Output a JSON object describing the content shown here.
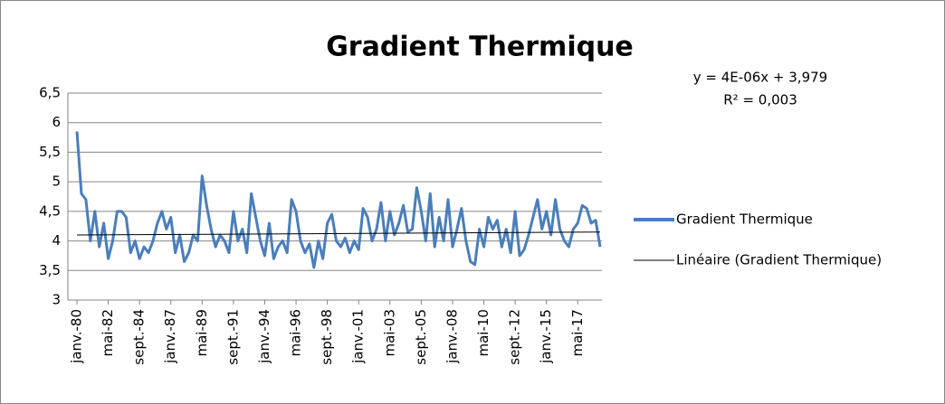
{
  "chart_data": {
    "type": "line",
    "title": "Gradient Thermique",
    "equation": "y = 4E-06x + 3,979",
    "r_squared": "R² = 0,003",
    "categories": [
      "janv.-80",
      null,
      null,
      null,
      null,
      null,
      null,
      "mai-82",
      null,
      null,
      null,
      null,
      null,
      null,
      "sept.-84",
      null,
      null,
      null,
      null,
      null,
      null,
      "janv.-87",
      null,
      null,
      null,
      null,
      null,
      null,
      "mai-89",
      null,
      null,
      null,
      null,
      null,
      null,
      "sept.-91",
      null,
      null,
      null,
      null,
      null,
      null,
      "janv.-94",
      null,
      null,
      null,
      null,
      null,
      null,
      "mai-96",
      null,
      null,
      null,
      null,
      null,
      null,
      "sept.-98",
      null,
      null,
      null,
      null,
      null,
      null,
      "janv.-01",
      null,
      null,
      null,
      null,
      null,
      null,
      "mai-03",
      null,
      null,
      null,
      null,
      null,
      null,
      "sept.-05",
      null,
      null,
      null,
      null,
      null,
      null,
      "janv.-08",
      null,
      null,
      null,
      null,
      null,
      null,
      "mai-10",
      null,
      null,
      null,
      null,
      null,
      null,
      "sept.-12",
      null,
      null,
      null,
      null,
      null,
      null,
      "janv.-15",
      null,
      null,
      null,
      null,
      null,
      null,
      "mai-17",
      null,
      null,
      null,
      null,
      null
    ],
    "series": [
      {
        "name": "Gradient Thermique",
        "color": "#4a7ebb",
        "values": [
          5.85,
          4.8,
          4.7,
          4.0,
          4.5,
          3.9,
          4.3,
          3.7,
          4.0,
          4.5,
          4.5,
          4.4,
          3.8,
          4.0,
          3.7,
          3.9,
          3.8,
          4.0,
          4.3,
          4.5,
          4.2,
          4.4,
          3.8,
          4.1,
          3.65,
          3.8,
          4.1,
          4.0,
          5.1,
          4.6,
          4.2,
          3.9,
          4.1,
          4.0,
          3.8,
          4.5,
          4.0,
          4.2,
          3.8,
          4.8,
          4.4,
          4.0,
          3.75,
          4.3,
          3.7,
          3.9,
          4.0,
          3.8,
          4.7,
          4.5,
          4.0,
          3.8,
          3.95,
          3.55,
          4.0,
          3.7,
          4.3,
          4.45,
          4.0,
          3.9,
          4.05,
          3.8,
          4.0,
          3.85,
          4.55,
          4.4,
          4.0,
          4.2,
          4.65,
          4.0,
          4.5,
          4.1,
          4.3,
          4.6,
          4.15,
          4.2,
          4.9,
          4.5,
          4.0,
          4.8,
          3.9,
          4.4,
          4.0,
          4.7,
          3.9,
          4.2,
          4.55,
          4.0,
          3.65,
          3.6,
          4.2,
          3.9,
          4.4,
          4.2,
          4.35,
          3.9,
          4.2,
          3.8,
          4.5,
          3.75,
          3.85,
          4.1,
          4.4,
          4.7,
          4.2,
          4.5,
          4.1,
          4.7,
          4.2,
          4.0,
          3.9,
          4.2,
          4.3,
          4.6,
          4.55,
          4.3,
          4.35,
          3.9
        ]
      }
    ],
    "trendline": {
      "name": "Linéaire (Gradient Thermique)",
      "color": "#000000",
      "values": [
        4.1,
        4.15
      ]
    },
    "ylim": [
      3,
      6.5
    ],
    "yticks": [
      3,
      {
        "value": 3.5,
        "label": "3,5"
      },
      4,
      {
        "value": 4.5,
        "label": "4,5"
      },
      5,
      {
        "value": 5.5,
        "label": "5,5"
      },
      6,
      {
        "value": 6.5,
        "label": "6,5"
      }
    ],
    "grid": true
  }
}
